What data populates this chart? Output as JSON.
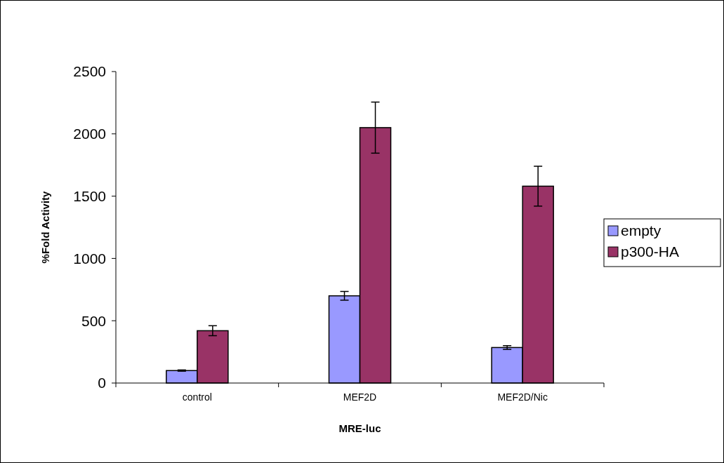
{
  "chart_data": {
    "type": "bar",
    "xlabel": "MRE-luc",
    "ylabel": "%Fold Activity",
    "categories": [
      "control",
      "MEF2D",
      "MEF2D/Nic"
    ],
    "series": [
      {
        "name": "empty",
        "color": "#9999ff",
        "values": [
          100,
          700,
          285
        ],
        "errors": [
          5,
          35,
          15
        ]
      },
      {
        "name": "p300-HA",
        "color": "#993366",
        "values": [
          420,
          2050,
          1580
        ],
        "errors": [
          40,
          205,
          160
        ]
      }
    ],
    "ylim": [
      0,
      2500
    ],
    "yticks": [
      0,
      500,
      1000,
      1500,
      2000,
      2500
    ],
    "legend": "right",
    "grid": false
  }
}
